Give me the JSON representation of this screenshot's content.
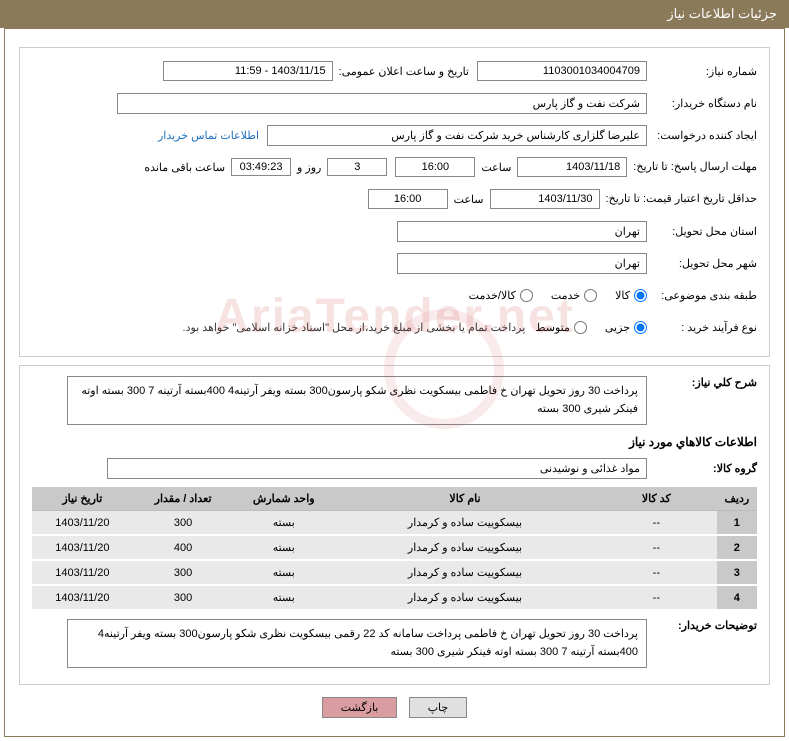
{
  "header": {
    "title": "جزئیات اطلاعات نیاز"
  },
  "fields": {
    "need_no_label": "شماره نیاز:",
    "need_no": "1103001034004709",
    "announce_label": "تاریخ و ساعت اعلان عمومی:",
    "announce_value": "1403/11/15 - 11:59",
    "buyer_org_label": "نام دستگاه خریدار:",
    "buyer_org": "شرکت نفت و گاز پارس",
    "requester_label": "ایجاد کننده درخواست:",
    "requester": "علیرضا  گلزاری کارشناس خرید  شرکت نفت و گاز پارس",
    "contact_link": "اطلاعات تماس خریدار",
    "deadline_label": "مهلت ارسال پاسخ: تا تاریخ:",
    "deadline_date": "1403/11/18",
    "hour_label": "ساعت",
    "deadline_time": "16:00",
    "days_val": "3",
    "days_label": "روز و",
    "countdown": "03:49:23",
    "remain_label": "ساعت باقی مانده",
    "validity_label": "حداقل تاریخ اعتبار قیمت: تا تاریخ:",
    "validity_date": "1403/11/30",
    "validity_time": "16:00",
    "province_label": "استان محل تحویل:",
    "province": "تهران",
    "city_label": "شهر محل تحویل:",
    "city": "تهران",
    "category_label": "طبقه بندی موضوعی:",
    "cat_goods": "کالا",
    "cat_service": "خدمت",
    "cat_both": "کالا/خدمت",
    "process_label": "نوع فرآیند خرید :",
    "proc_partial": "جزیی",
    "proc_medium": "متوسط",
    "process_note": "پرداخت تمام یا بخشی از مبلغ خرید،از محل \"اسناد خزانه اسلامی\" خواهد بود.",
    "summary_label": "شرح کلي نياز:",
    "summary_text": "پرداخت 30 روز تحویل تهران خ فاطمی  بیسکویت نظری شکو پارسون300 بسته ویفر آرتینه4 400بسته آرتینه 7 300 بسته اوته فینکر شیری 300 بسته",
    "items_title": "اطلاعات کالاهاي مورد نياز",
    "group_label": "گروه کالا:",
    "group_value": "مواد غذائی و نوشیدنی",
    "buyer_notes_label": "توضیحات خریدار:",
    "buyer_notes": "پرداخت 30 روز تحویل تهران خ فاطمی پرداخت سامانه کد 22 رقمی بیسکویت نظری شکو پارسون300 بسته ویفر آرتینه4 400بسته آرتینه 7 300 بسته اوته فینکر شیری 300 بسته"
  },
  "table": {
    "headers": {
      "row": "ردیف",
      "code": "کد کالا",
      "name": "نام کالا",
      "unit": "واحد شمارش",
      "qty": "تعداد / مقدار",
      "date": "تاریخ نیاز"
    },
    "rows": [
      {
        "n": "1",
        "code": "--",
        "name": "بیسکوییت ساده و کرمدار",
        "unit": "بسته",
        "qty": "300",
        "date": "1403/11/20"
      },
      {
        "n": "2",
        "code": "--",
        "name": "بیسکوییت ساده و کرمدار",
        "unit": "بسته",
        "qty": "400",
        "date": "1403/11/20"
      },
      {
        "n": "3",
        "code": "--",
        "name": "بیسکوییت ساده و کرمدار",
        "unit": "بسته",
        "qty": "300",
        "date": "1403/11/20"
      },
      {
        "n": "4",
        "code": "--",
        "name": "بیسکوییت ساده و کرمدار",
        "unit": "بسته",
        "qty": "300",
        "date": "1403/11/20"
      }
    ]
  },
  "buttons": {
    "print": "چاپ",
    "back": "بازگشت"
  },
  "watermark": "AriaTender.net"
}
